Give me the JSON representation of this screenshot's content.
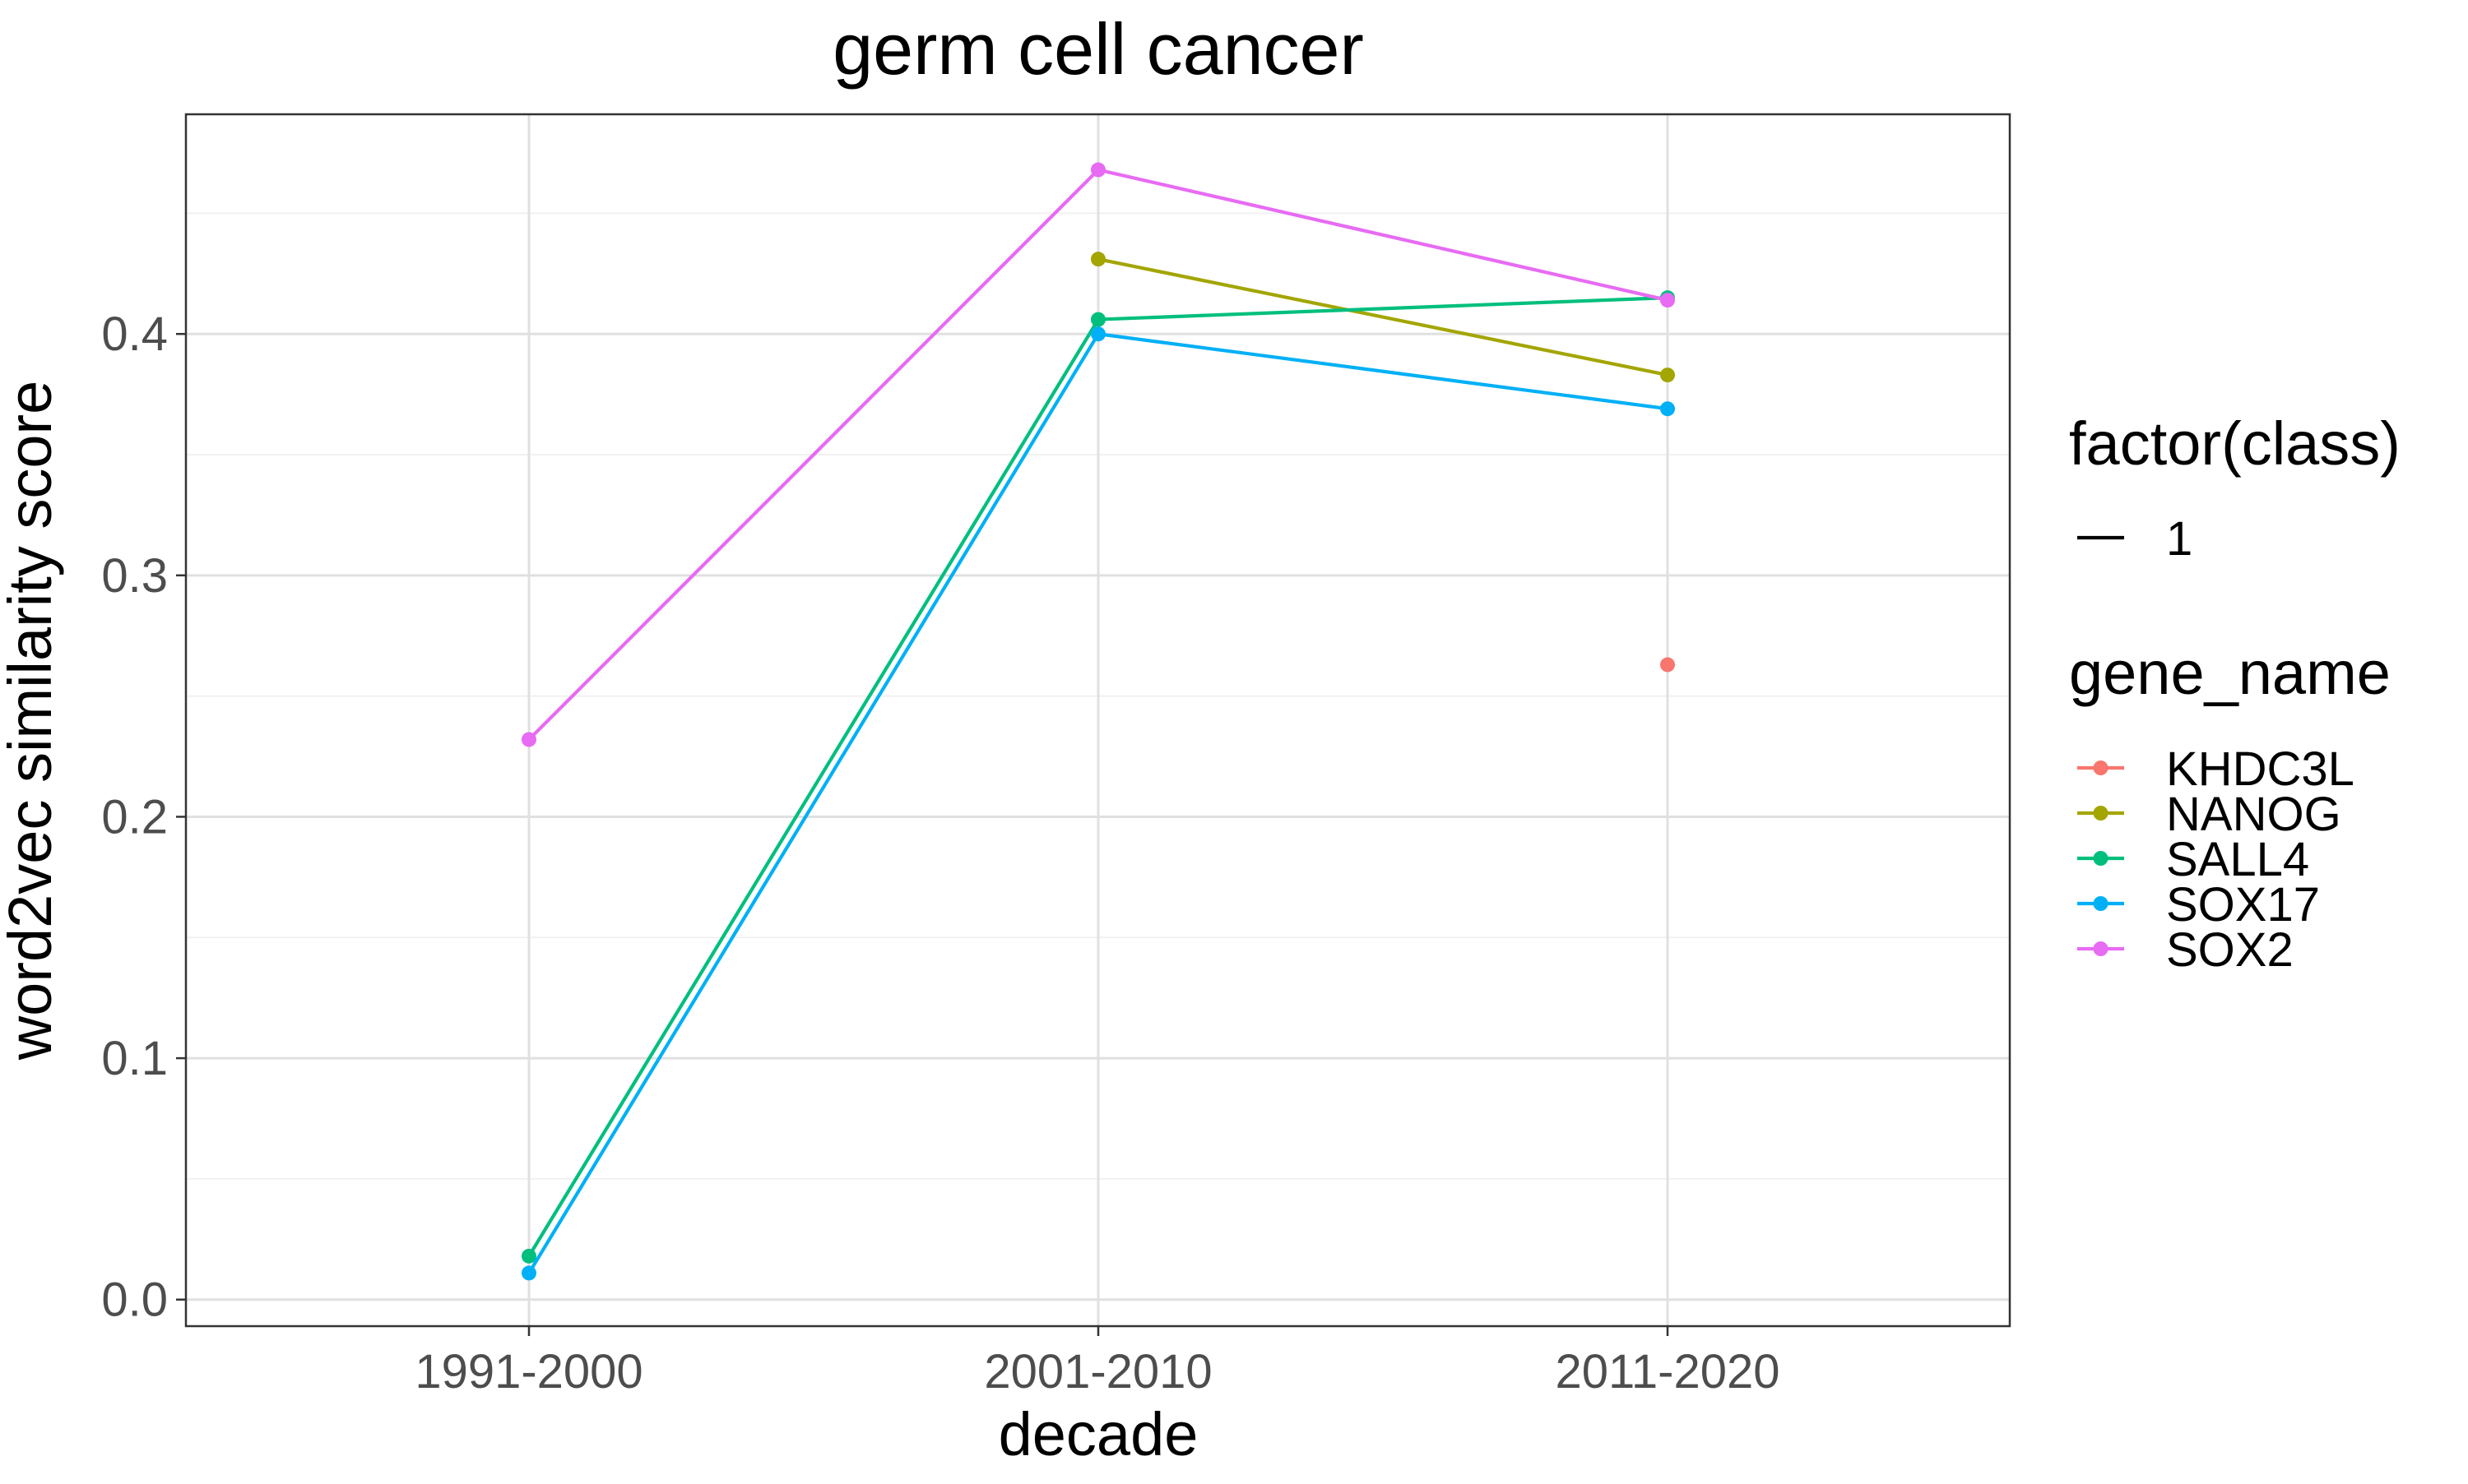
{
  "chart_data": {
    "type": "line",
    "title": "germ cell cancer",
    "xlabel": "decade",
    "ylabel": "word2vec similarity score",
    "categories": [
      "1991-2000",
      "2001-2010",
      "2011-2020"
    ],
    "ylim": [
      -0.011,
      0.491
    ],
    "yticks": [
      0.0,
      0.1,
      0.2,
      0.3,
      0.4
    ],
    "ytick_labels": [
      "0.0",
      "0.1",
      "0.2",
      "0.3",
      "0.4"
    ],
    "grid": true,
    "legend_position": "right",
    "legends": [
      {
        "title": "factor(class)",
        "type": "linetype",
        "items": [
          {
            "label": "1"
          }
        ]
      },
      {
        "title": "gene_name",
        "type": "color",
        "items": [
          {
            "label": "KHDC3L",
            "color": "#F8766D"
          },
          {
            "label": "NANOG",
            "color": "#A3A500"
          },
          {
            "label": "SALL4",
            "color": "#00BF7D"
          },
          {
            "label": "SOX17",
            "color": "#00B0F6"
          },
          {
            "label": "SOX2",
            "color": "#E76BF3"
          }
        ]
      }
    ],
    "series": [
      {
        "name": "KHDC3L",
        "color": "#F8766D",
        "values": [
          null,
          null,
          0.263
        ]
      },
      {
        "name": "NANOG",
        "color": "#A3A500",
        "values": [
          null,
          0.431,
          0.383
        ]
      },
      {
        "name": "SALL4",
        "color": "#00BF7D",
        "values": [
          0.018,
          0.406,
          0.415
        ]
      },
      {
        "name": "SOX17",
        "color": "#00B0F6",
        "values": [
          0.011,
          0.4,
          0.369
        ]
      },
      {
        "name": "SOX2",
        "color": "#E76BF3",
        "values": [
          0.232,
          0.468,
          0.414
        ]
      }
    ]
  }
}
